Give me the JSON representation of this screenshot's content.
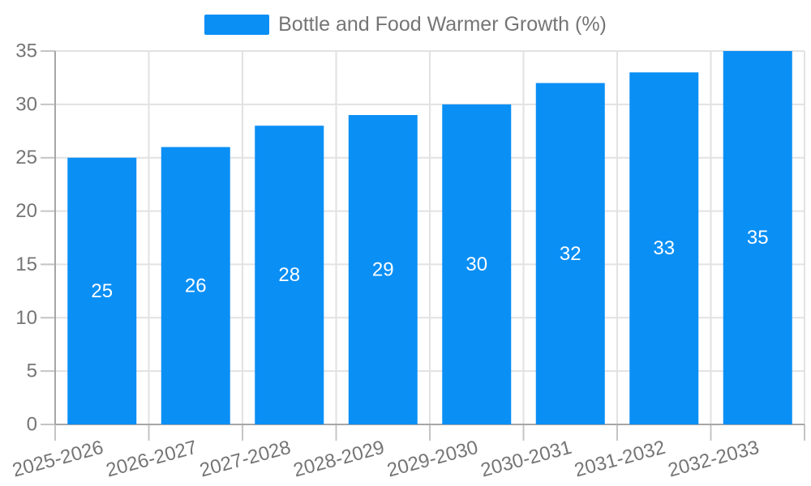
{
  "legend": {
    "label": "Bottle and Food Warmer Growth (%)",
    "color": "#0a8ff5"
  },
  "chart_data": {
    "type": "bar",
    "title": "",
    "categories": [
      "2025-2026",
      "2026-2027",
      "2027-2028",
      "2028-2029",
      "2029-2030",
      "2030-2031",
      "2031-2032",
      "2032-2033"
    ],
    "series": [
      {
        "name": "Bottle and Food Warmer Growth (%)",
        "values": [
          25,
          26,
          28,
          29,
          30,
          32,
          33,
          35
        ],
        "color": "#0a8ff5"
      }
    ],
    "bar_labels": [
      "25",
      "26",
      "28",
      "29",
      "30",
      "32",
      "33",
      "35"
    ],
    "xlabel": "",
    "ylabel": "",
    "ylim": [
      0,
      35
    ],
    "y_ticks": [
      0,
      5,
      10,
      15,
      20,
      25,
      30,
      35
    ],
    "grid": true,
    "legend_position": "top-center",
    "x_tick_rotation_deg": 15,
    "bar_label_color": "#ffffff"
  },
  "colors": {
    "bar": "#0a8ff5",
    "grid_line": "#e2e2e2",
    "axis_line": "#a6a6a6",
    "tick_line": "#c4c4c4",
    "axis_text": "#757575",
    "background": "#ffffff"
  }
}
